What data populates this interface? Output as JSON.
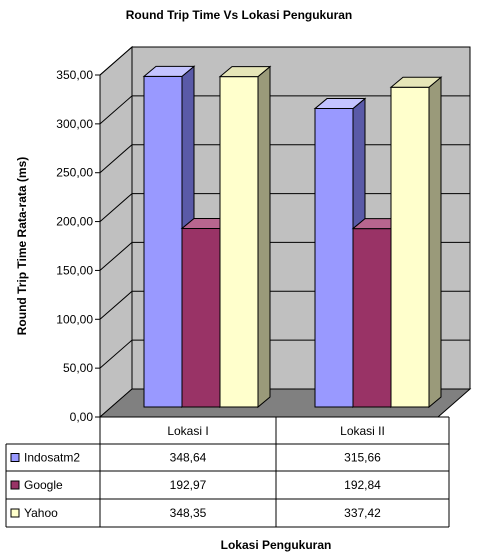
{
  "chart_data": {
    "type": "bar",
    "title": "Round Trip Time Vs Lokasi Pengukuran",
    "xlabel": "Lokasi Pengukuran",
    "ylabel": "Round Trip Time Rata-rata (ms)",
    "ylim": [
      0,
      350
    ],
    "yticks": [
      "0,00",
      "50,00",
      "100,00",
      "150,00",
      "200,00",
      "250,00",
      "300,00",
      "350,00"
    ],
    "categories": [
      "Lokasi I",
      "Lokasi II"
    ],
    "grid": true,
    "legend": "left, as data table rows",
    "series": [
      {
        "name": "Indosatm2",
        "values": [
          348.64,
          315.66
        ],
        "labels": [
          "348,64",
          "315,66"
        ],
        "color": "#9999ff",
        "side": "#5a5aa8",
        "top": "#c4c4ff"
      },
      {
        "name": "Google",
        "values": [
          192.97,
          192.84
        ],
        "labels": [
          "192,97",
          "192,84"
        ],
        "color": "#993366",
        "side": "#5c1f3d",
        "top": "#b8668f"
      },
      {
        "name": "Yahoo",
        "values": [
          348.35,
          337.42
        ],
        "labels": [
          "348,35",
          "337,42"
        ],
        "color": "#ffffcc",
        "side": "#9a9a7a",
        "top": "#e6e6b8"
      }
    ],
    "wall_color": "#c0c0c0",
    "floor_color": "#808080"
  }
}
